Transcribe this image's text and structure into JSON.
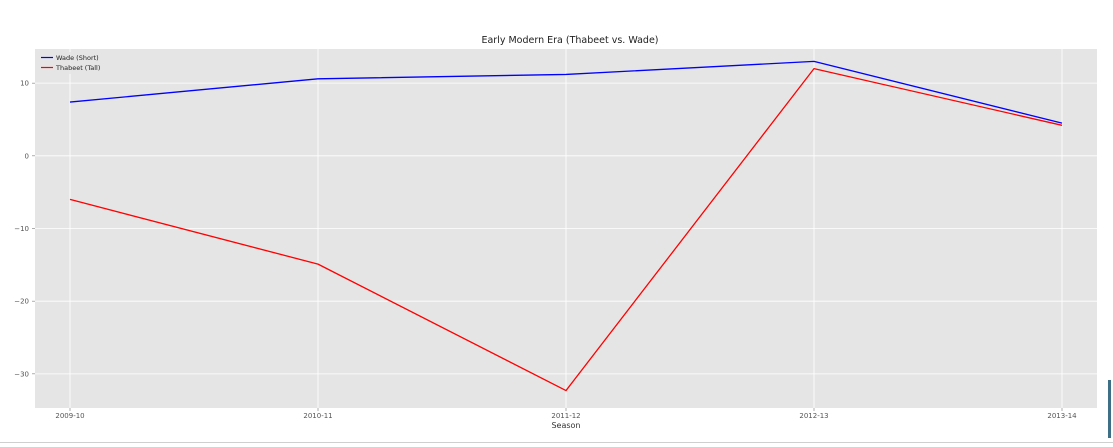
{
  "chart_data": {
    "type": "line",
    "title": "Early Modern Era (Thabeet vs. Wade)",
    "xlabel": "Season",
    "ylabel": "",
    "categories": [
      "2009-10",
      "2010-11",
      "2011-12",
      "2012-13",
      "2013-14"
    ],
    "series": [
      {
        "name": "Wade (Short)",
        "color": "#0000ff",
        "values": [
          7.4,
          10.6,
          11.2,
          13.0,
          4.5
        ]
      },
      {
        "name": "Thabeet (Tall)",
        "color": "#ff0000",
        "values": [
          -6.0,
          -14.9,
          -32.3,
          12.0,
          4.2
        ]
      }
    ],
    "ylim": [
      -34.7,
      14.7
    ],
    "yticks": [
      10,
      0,
      -10,
      -20,
      -30
    ],
    "grid": true,
    "legend": "top-left",
    "background": "#e5e5e5"
  }
}
